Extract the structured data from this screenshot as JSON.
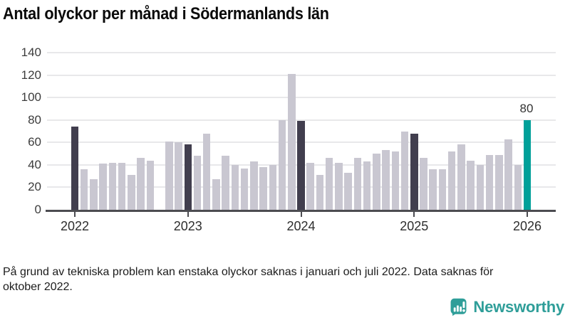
{
  "title": "Antal olyckor per månad i Södermanlands län",
  "footnote": "På grund av tekniska problem kan enstaka olyckor saknas i januari och juli 2022. Data saknas för oktober 2022.",
  "logo": {
    "text": "Newsworthy",
    "icon": "newsworthy-speech-bubble-chart-icon"
  },
  "colors": {
    "bar_default": "#c9c7d1",
    "bar_january": "#413e4e",
    "bar_highlight": "#00a099",
    "axis": "#4c4c51",
    "gridline": "#e8e8ea",
    "logo_teal": "#2f9e99"
  },
  "chart_data": {
    "type": "bar",
    "title": "Antal olyckor per månad i Södermanlands län",
    "x_tick_labels": [
      "2022",
      "2023",
      "2024",
      "2025",
      "2026"
    ],
    "y_ticks": [
      0,
      20,
      40,
      60,
      80,
      100,
      120,
      140
    ],
    "ylim": [
      0,
      140
    ],
    "grid": true,
    "months": [
      "2022-01",
      "2022-02",
      "2022-03",
      "2022-04",
      "2022-05",
      "2022-06",
      "2022-07",
      "2022-08",
      "2022-09",
      "2022-10",
      "2022-11",
      "2022-12",
      "2023-01",
      "2023-02",
      "2023-03",
      "2023-04",
      "2023-05",
      "2023-06",
      "2023-07",
      "2023-08",
      "2023-09",
      "2023-10",
      "2023-11",
      "2023-12",
      "2024-01",
      "2024-02",
      "2024-03",
      "2024-04",
      "2024-05",
      "2024-06",
      "2024-07",
      "2024-08",
      "2024-09",
      "2024-10",
      "2024-11",
      "2024-12",
      "2025-01",
      "2025-02",
      "2025-03",
      "2025-04",
      "2025-05",
      "2025-06",
      "2025-07",
      "2025-08",
      "2025-09",
      "2025-10",
      "2025-11",
      "2025-12",
      "2026-01"
    ],
    "values": [
      74,
      36,
      27,
      41,
      42,
      42,
      31,
      46,
      44,
      null,
      61,
      60,
      58,
      48,
      68,
      27,
      48,
      40,
      37,
      43,
      38,
      40,
      80,
      121,
      79,
      42,
      31,
      46,
      42,
      33,
      46,
      43,
      50,
      53,
      52,
      70,
      68,
      46,
      36,
      36,
      52,
      58,
      44,
      40,
      49,
      49,
      63,
      40,
      80
    ],
    "missing_months": [
      "2022-10"
    ],
    "january_indices": [
      0,
      12,
      24,
      36
    ],
    "highlight": {
      "index": 48,
      "month": "2026-01",
      "value": 80,
      "label": "80"
    }
  }
}
